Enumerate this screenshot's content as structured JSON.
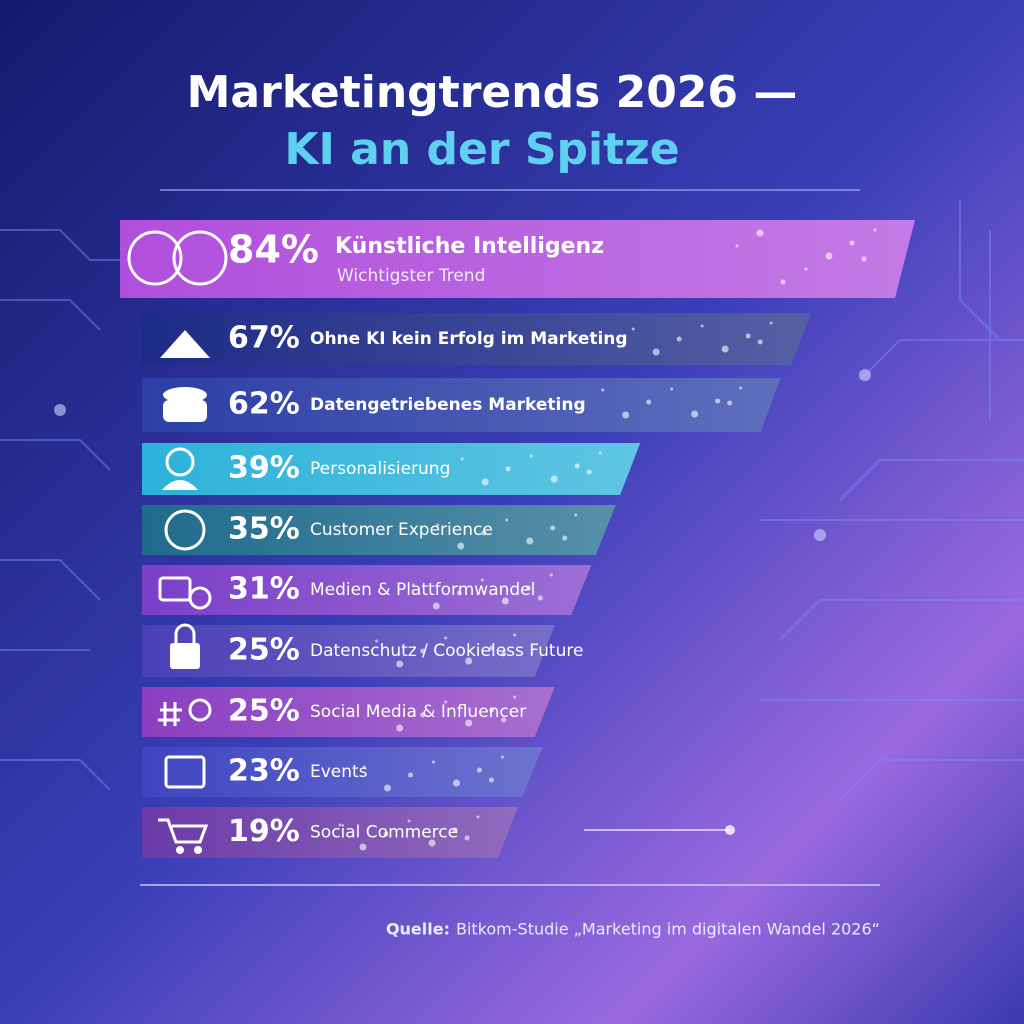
{
  "chart_data": {
    "type": "bar",
    "orientation": "horizontal",
    "title": "Marketingtrends 2026 —",
    "subtitle": "KI an der Spitze",
    "categories": [
      "Künstliche Intelligenz",
      "Ohne KI kein Erfolg im Marketing",
      "Datengetriebenes Marketing",
      "Personalisierung",
      "Customer Experience",
      "Medien & Plattformwandel",
      "Datenschutz / Cookieless Future",
      "Social Media & Influencer",
      "Events",
      "Social Commerce"
    ],
    "values": [
      84,
      67,
      62,
      39,
      35,
      31,
      25,
      25,
      23,
      19
    ],
    "value_labels": [
      "84%",
      "67%",
      "62%",
      "39%",
      "35%",
      "31%",
      "25%",
      "25%",
      "23%",
      "19%"
    ],
    "colors": [
      "#b04fdc",
      "#1d2b86",
      "#2b3fa6",
      "#2cb2da",
      "#1f6b8c",
      "#7b3fc8",
      "#4b3fb6",
      "#8a3fc0",
      "#3e45c0",
      "#6b3aa8"
    ],
    "annotation": "Wichtigster Trend",
    "source": {
      "label": "Quelle:",
      "text": "Bitkom-Studie „Marketing im digitalen Wandel 2026“"
    }
  }
}
